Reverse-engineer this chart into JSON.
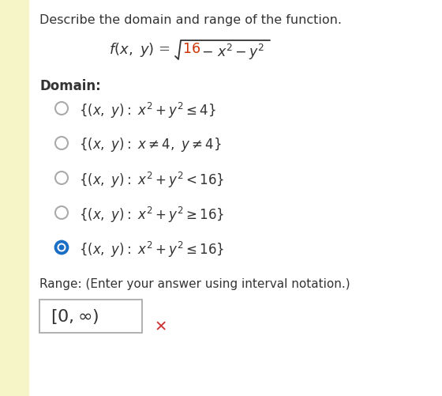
{
  "background_color": "#ffffff",
  "left_bar_color": "#f5f5c8",
  "title": "Describe the domain and range of the function.",
  "domain_label": "Domain:",
  "options": [
    {
      "selected": false
    },
    {
      "selected": false
    },
    {
      "selected": false
    },
    {
      "selected": false
    },
    {
      "selected": true
    }
  ],
  "range_label": "Range: (Enter your answer using interval notation.)",
  "radio_color_unselected": "#aaaaaa",
  "radio_color_selected": "#1a6fc4",
  "cross_color": "#cc3333",
  "text_color": "#333333",
  "function_number_color": "#cc3300",
  "box_border_color": "#aaaaaa",
  "option_texts": [
    "{(x, y): x² + y² ≤ 4}",
    "{(x, y): x ≠ 4, y ≠ 4}",
    "{(x, y): x² + y² < 16}",
    "{(x, y): x² + y² ≥ 16}",
    "{(x, y): x² + y² ≤ 16}"
  ]
}
